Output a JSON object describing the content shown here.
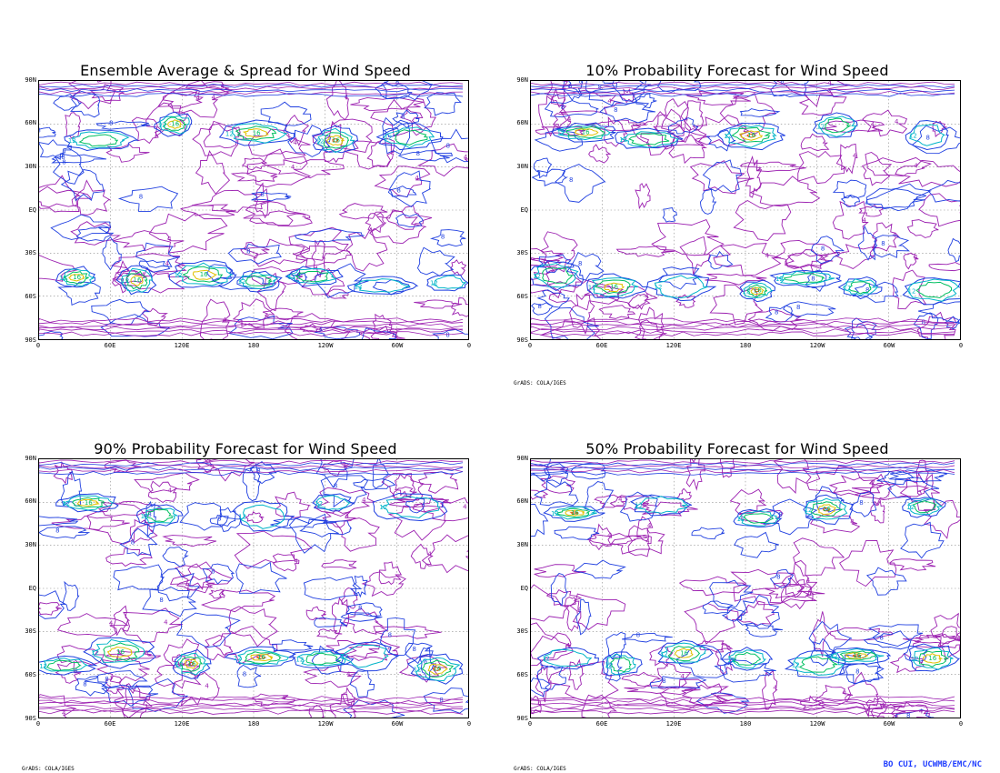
{
  "panels": [
    {
      "title": "Ensemble Average & Spread for Wind Speed",
      "credit": ""
    },
    {
      "title": "10% Probability Forecast for Wind Speed",
      "credit": "GrADS: COLA/IGES"
    },
    {
      "title": "90% Probability Forecast for Wind Speed",
      "credit": "GrADS: COLA/IGES"
    },
    {
      "title": "50% Probability Forecast for Wind Speed",
      "credit": "GrADS: COLA/IGES"
    }
  ],
  "lat_labels": [
    "90N",
    "60N",
    "30N",
    "EQ",
    "30S",
    "60S",
    "90S"
  ],
  "lon_labels": [
    "0",
    "60E",
    "120E",
    "180",
    "120W",
    "60W",
    "0"
  ],
  "contour_labels": [
    "4",
    "8",
    "12",
    "16"
  ],
  "producer_credit": "BO CUI, UCWMB/EMC/NC",
  "colors": {
    "contour_4": "#9b1fb0",
    "contour_8": "#1f3fe0",
    "contour_12": "#00b4c8",
    "contour_16": "#00c060",
    "contour_20": "#e0c000",
    "contour_24": "#e05000",
    "grid": "#888888",
    "producer": "#1e3cff"
  }
}
